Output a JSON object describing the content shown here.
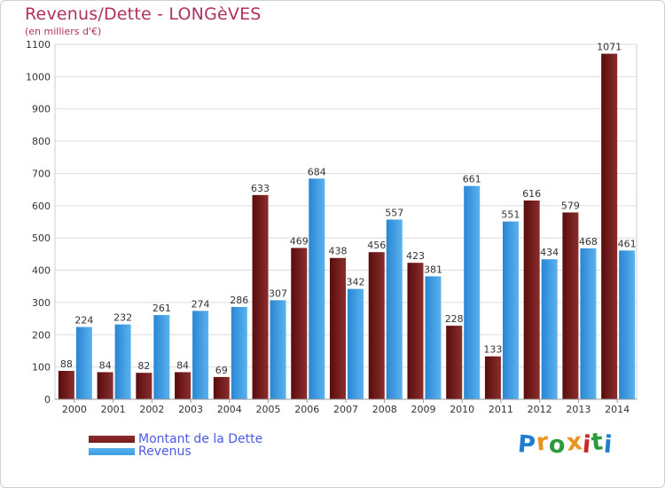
{
  "chart_data": {
    "type": "bar",
    "title": "Revenus/Dette - LONGèVES",
    "subtitle": "(en milliers d'€)",
    "categories": [
      "2000",
      "2001",
      "2002",
      "2003",
      "2004",
      "2005",
      "2006",
      "2007",
      "2008",
      "2009",
      "2010",
      "2011",
      "2012",
      "2013",
      "2014"
    ],
    "series": [
      {
        "name": "Montant de la Dette",
        "color": "#7a1a1a",
        "values": [
          88,
          84,
          82,
          84,
          69,
          633,
          469,
          438,
          456,
          423,
          228,
          133,
          616,
          579,
          1071
        ]
      },
      {
        "name": "Revenus",
        "color": "#3a9ae0",
        "values": [
          224,
          232,
          261,
          274,
          286,
          307,
          684,
          342,
          557,
          381,
          661,
          551,
          434,
          468,
          461
        ]
      }
    ],
    "ylim": [
      0,
      1100
    ],
    "yticks": [
      0,
      100,
      200,
      300,
      400,
      500,
      600,
      700,
      800,
      900,
      1000,
      1100
    ],
    "grid": true,
    "legend": "bottom-left"
  },
  "logo": {
    "text": "Proxiti",
    "colors": [
      "#1e7fd0",
      "#e8941e",
      "#2a9a3c",
      "#e8941e",
      "#c8282a",
      "#2a9a3c",
      "#1e7fd0"
    ]
  }
}
